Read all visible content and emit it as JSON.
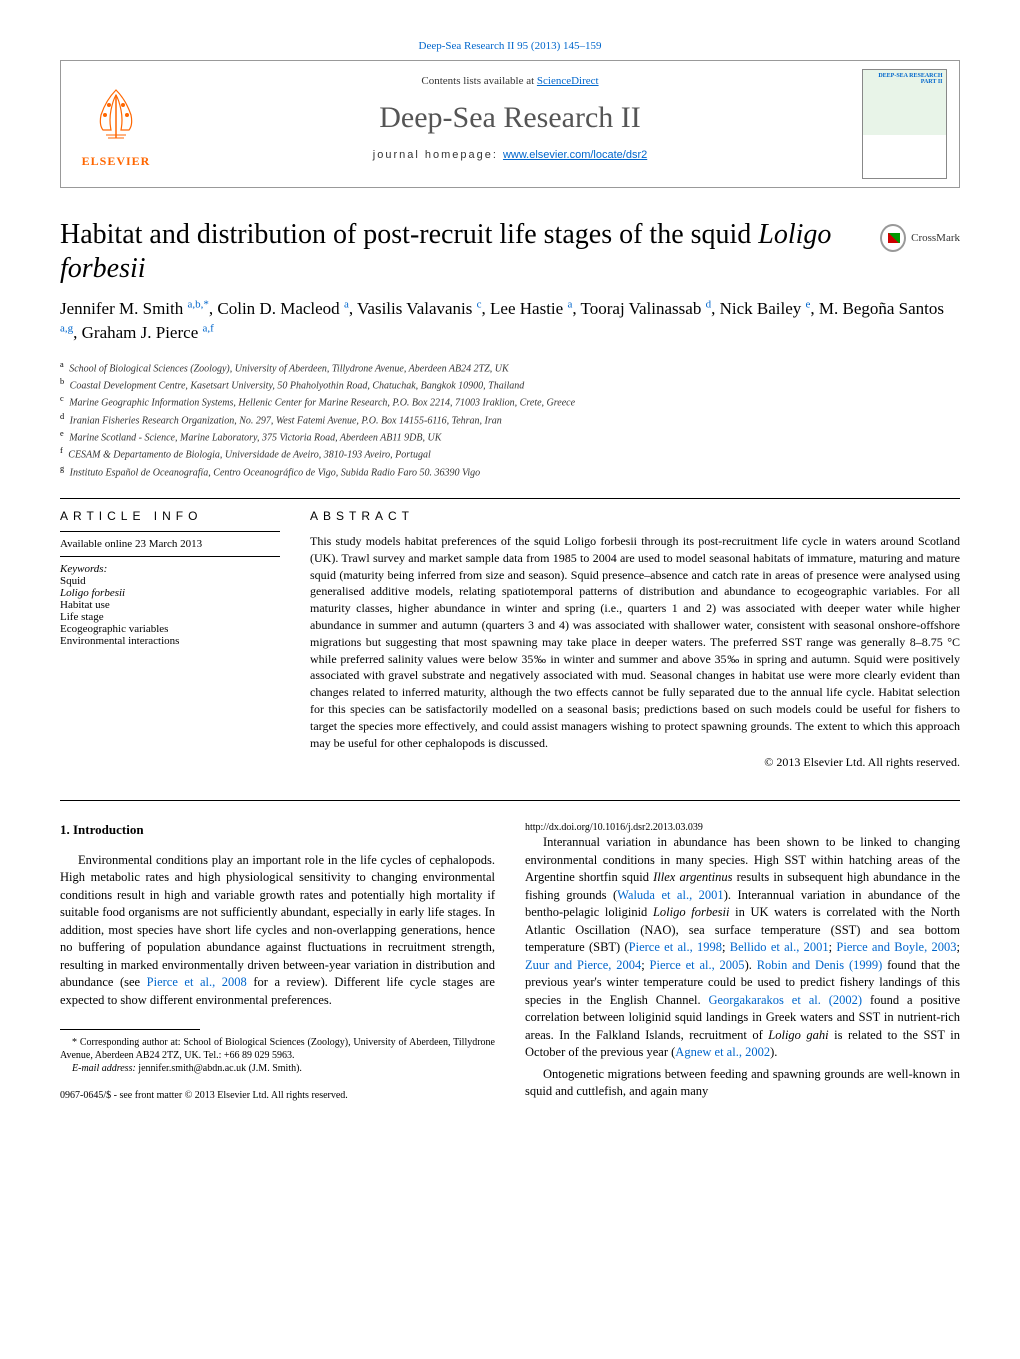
{
  "top_link": "Deep-Sea Research II 95 (2013) 145–159",
  "header": {
    "publisher_name": "ELSEVIER",
    "contents_prefix": "Contents lists available at ",
    "contents_link": "ScienceDirect",
    "journal_name": "Deep-Sea Research II",
    "homepage_prefix": "journal homepage: ",
    "homepage_link": "www.elsevier.com/locate/dsr2",
    "cover_title": "DEEP-SEA RESEARCH PART II"
  },
  "crossmark_label": "CrossMark",
  "title_plain": "Habitat and distribution of post-recruit life stages of the squid ",
  "title_italic": "Loligo forbesii",
  "authors_html": "Jennifer M. Smith <sup>a,b,*</sup>, Colin D. Macleod <sup>a</sup>, Vasilis Valavanis <sup>c</sup>, Lee Hastie <sup>a</sup>, Tooraj Valinassab <sup>d</sup>, Nick Bailey <sup>e</sup>, M. Begoña Santos <sup>a,g</sup>, Graham J. Pierce <sup>a,f</sup>",
  "affiliations": [
    {
      "sup": "a",
      "text": "School of Biological Sciences (Zoology), University of Aberdeen, Tillydrone Avenue, Aberdeen AB24 2TZ, UK"
    },
    {
      "sup": "b",
      "text": "Coastal Development Centre, Kasetsart University, 50 Phaholyothin Road, Chatuchak, Bangkok 10900, Thailand"
    },
    {
      "sup": "c",
      "text": "Marine Geographic Information Systems, Hellenic Center for Marine Research, P.O. Box 2214, 71003 Iraklion, Crete, Greece"
    },
    {
      "sup": "d",
      "text": "Iranian Fisheries Research Organization, No. 297, West Fatemi Avenue, P.O. Box 14155-6116, Tehran, Iran"
    },
    {
      "sup": "e",
      "text": "Marine Scotland - Science, Marine Laboratory, 375 Victoria Road, Aberdeen AB11 9DB, UK"
    },
    {
      "sup": "f",
      "text": "CESAM & Departamento de Biologia, Universidade de Aveiro, 3810-193 Aveiro, Portugal"
    },
    {
      "sup": "g",
      "text": "Instituto Español de Oceanografía, Centro Oceanográfico de Vigo, Subida Radio Faro 50. 36390 Vigo"
    }
  ],
  "info": {
    "heading": "ARTICLE INFO",
    "online": "Available online 23 March 2013",
    "keywords_label": "Keywords:",
    "keywords": [
      "Squid",
      "Loligo forbesii",
      "Habitat use",
      "Life stage",
      "Ecogeographic variables",
      "Environmental interactions"
    ]
  },
  "abstract": {
    "heading": "ABSTRACT",
    "text": "This study models habitat preferences of the squid Loligo forbesii through its post-recruitment life cycle in waters around Scotland (UK). Trawl survey and market sample data from 1985 to 2004 are used to model seasonal habitats of immature, maturing and mature squid (maturity being inferred from size and season). Squid presence–absence and catch rate in areas of presence were analysed using generalised additive models, relating spatiotemporal patterns of distribution and abundance to ecogeographic variables. For all maturity classes, higher abundance in winter and spring (i.e., quarters 1 and 2) was associated with deeper water while higher abundance in summer and autumn (quarters 3 and 4) was associated with shallower water, consistent with seasonal onshore-offshore migrations but suggesting that most spawning may take place in deeper waters. The preferred SST range was generally 8–8.75 °C while preferred salinity values were below 35‰ in winter and summer and above 35‰ in spring and autumn. Squid were positively associated with gravel substrate and negatively associated with mud. Seasonal changes in habitat use were more clearly evident than changes related to inferred maturity, although the two effects cannot be fully separated due to the annual life cycle. Habitat selection for this species can be satisfactorily modelled on a seasonal basis; predictions based on such models could be useful for fishers to target the species more effectively, and could assist managers wishing to protect spawning grounds. The extent to which this approach may be useful for other cephalopods is discussed.",
    "copyright": "© 2013 Elsevier Ltd. All rights reserved."
  },
  "intro": {
    "heading": "1.  Introduction",
    "para1_pre": "Environmental conditions play an important role in the life cycles of cephalopods. High metabolic rates and high physiological sensitivity to changing environmental conditions result in high and variable growth rates and potentially high mortality if suitable food organisms are not sufficiently abundant, especially in early life stages. In addition, most species have short life cycles and non-overlapping generations, hence no buffering of population abundance against fluctuations in recruitment strength, resulting in marked environmentally driven between-year variation in distribution and abundance (see ",
    "para1_cite": "Pierce et al., 2008",
    "para1_post": " for a review). Different life cycle stages are expected to show different environmental preferences.",
    "para2": "Interannual variation in abundance has been shown to be linked to changing environmental conditions in many species. High SST within hatching areas of the Argentine shortfin squid Illex argentinus results in subsequent high abundance in the fishing grounds (Waluda et al., 2001). Interannual variation in abundance of the bentho-pelagic loliginid Loligo forbesii in UK waters is correlated with the North Atlantic Oscillation (NAO), sea surface temperature (SST) and sea bottom temperature (SBT) (Pierce et al., 1998; Bellido et al., 2001; Pierce and Boyle, 2003; Zuur and Pierce, 2004; Pierce et al., 2005). Robin and Denis (1999) found that the previous year's winter temperature could be used to predict fishery landings of this species in the English Channel. Georgakarakos et al. (2002) found a positive correlation between loliginid squid landings in Greek waters and SST in nutrient-rich areas. In the Falkland Islands, recruitment of Loligo gahi is related to the SST in October of the previous year (Agnew et al., 2002).",
    "para3": "Ontogenetic migrations between feeding and spawning grounds are well-known in squid and cuttlefish, and again many"
  },
  "footnote": {
    "corr": "* Corresponding author at: School of Biological Sciences (Zoology), University of Aberdeen, Tillydrone Avenue, Aberdeen AB24 2TZ, UK. Tel.: +66 89 029 5963.",
    "email_label": "E-mail address:",
    "email": "jennifer.smith@abdn.ac.uk (J.M. Smith)."
  },
  "bottom": {
    "line1": "0967-0645/$ - see front matter © 2013 Elsevier Ltd. All rights reserved.",
    "line2": "http://dx.doi.org/10.1016/j.dsr2.2013.03.039"
  },
  "colors": {
    "link": "#0066cc",
    "elsevier_orange": "#ff6600",
    "text": "#000000",
    "border": "#999999"
  }
}
